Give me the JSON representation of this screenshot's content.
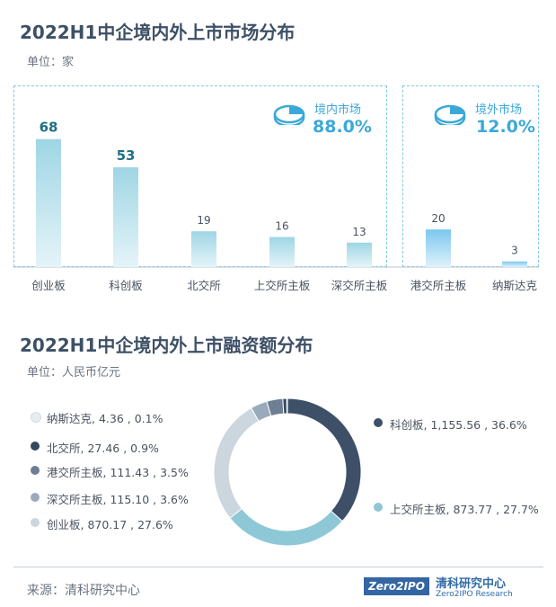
{
  "title1": "2022H1中企境内外上市市场分布",
  "unit1": "单位：家",
  "title2": "2022H1中企境内外上市融资额分布",
  "unit2": "单位：人民币亿元",
  "markets": {
    "domestic": {
      "label": "境内市场",
      "pct": "88.0%"
    },
    "overseas": {
      "label": "境外市场",
      "pct": "12.0%"
    }
  },
  "chart_data": [
    {
      "type": "bar",
      "title": "2022H1中企境内外上市市场分布",
      "unit": "单位：家",
      "categories": [
        "创业板",
        "科创板",
        "北交所",
        "上交所主板",
        "深交所主板",
        "港交所主板",
        "纳斯达克"
      ],
      "values": [
        68,
        53,
        19,
        16,
        13,
        20,
        3
      ],
      "groups": [
        {
          "name": "境内市场",
          "share": "88.0%",
          "categories": [
            "创业板",
            "科创板",
            "北交所",
            "上交所主板",
            "深交所主板"
          ]
        },
        {
          "name": "境外市场",
          "share": "12.0%",
          "categories": [
            "港交所主板",
            "纳斯达克"
          ]
        }
      ],
      "ylim": [
        0,
        75
      ]
    },
    {
      "type": "pie",
      "title": "2022H1中企境内外上市融资额分布",
      "unit": "单位：人民币亿元",
      "slices": [
        {
          "name": "科创板",
          "value": 1155.56,
          "value_label": "1,155.56",
          "pct": "36.6%",
          "color": "#3e5068"
        },
        {
          "name": "上交所主板",
          "value": 873.77,
          "value_label": "873.77",
          "pct": "27.7%",
          "color": "#8ec8d6"
        },
        {
          "name": "创业板",
          "value": 870.17,
          "value_label": "870.17",
          "pct": "27.6%",
          "color": "#ccd6df"
        },
        {
          "name": "深交所主板",
          "value": 115.1,
          "value_label": "115.10",
          "pct": "3.6%",
          "color": "#9aaabc"
        },
        {
          "name": "港交所主板",
          "value": 111.43,
          "value_label": "111.43",
          "pct": "3.5%",
          "color": "#6e7f93"
        },
        {
          "name": "北交所",
          "value": 27.46,
          "value_label": "27.46",
          "pct": "0.9%",
          "color": "#34495e"
        },
        {
          "name": "纳斯达克",
          "value": 4.36,
          "value_label": "4.36",
          "pct": "0.1%",
          "color": "#e8ecef"
        }
      ]
    }
  ],
  "footer": {
    "source": "来源：清科研究中心",
    "logo_text": "Zero2IPO",
    "brand_cn": "清科研究中心",
    "brand_en": "Zero2IPO Research"
  }
}
